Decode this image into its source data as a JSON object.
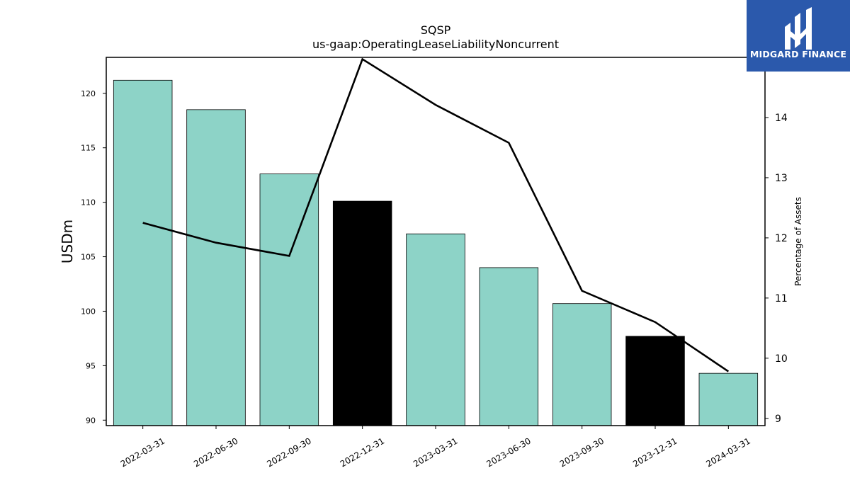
{
  "brand": {
    "name": "MIDGARD FINANCE",
    "logo_icon": "midgard-m-icon",
    "background": "#2b59ac"
  },
  "chart_data": {
    "type": "bar",
    "title": "SQSP",
    "subtitle": "us-gaap:OperatingLeaseLiabilityNoncurrent",
    "categories": [
      "2022-03-31",
      "2022-06-30",
      "2022-09-30",
      "2022-12-31",
      "2023-03-31",
      "2023-06-30",
      "2023-09-30",
      "2023-12-31",
      "2024-03-31"
    ],
    "series": [
      {
        "type": "bar",
        "axis": "left",
        "values": [
          121.2,
          118.5,
          112.6,
          110.1,
          107.1,
          104.0,
          100.7,
          97.7,
          94.3
        ],
        "colors": [
          "#8dd3c7",
          "#8dd3c7",
          "#8dd3c7",
          "#000000",
          "#8dd3c7",
          "#8dd3c7",
          "#8dd3c7",
          "#000000",
          "#8dd3c7"
        ]
      },
      {
        "type": "line",
        "axis": "right",
        "values": [
          12.25,
          11.92,
          11.7,
          14.97,
          14.21,
          13.58,
          11.12,
          10.6,
          9.78
        ],
        "color": "#000000"
      }
    ],
    "ylabel": "USDm",
    "ylim": [
      89.5,
      123.3
    ],
    "yticks": [
      90,
      95,
      100,
      105,
      110,
      115,
      120
    ],
    "y2label": "Percentage of Assets",
    "y2lim": [
      8.88,
      15.0
    ],
    "y2ticks": [
      9,
      10,
      11,
      12,
      13,
      14
    ],
    "grid": false,
    "legend": "none"
  }
}
